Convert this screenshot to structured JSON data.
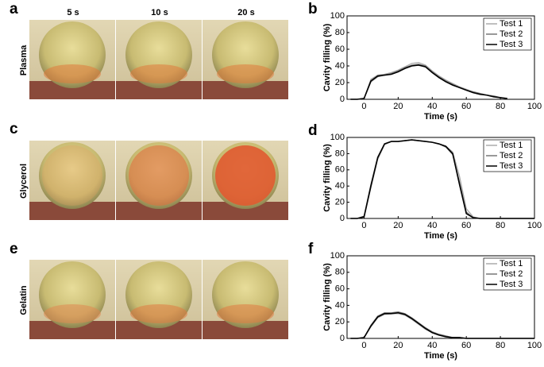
{
  "figure": {
    "columns": [
      "5 s",
      "10 s",
      "20 s"
    ],
    "rows": [
      {
        "panel": "a",
        "label": "Plasma"
      },
      {
        "panel": "c",
        "label": "Glycerol"
      },
      {
        "panel": "e",
        "label": "Gelatin"
      }
    ]
  },
  "chart_data": [
    {
      "type": "line",
      "panel": "b",
      "xlabel": "Time (s)",
      "ylabel": "Cavity filling (%)",
      "xlim": [
        -10,
        100
      ],
      "ylim": [
        0,
        100
      ],
      "xticks": [
        0,
        20,
        40,
        60,
        80,
        100
      ],
      "yticks": [
        0,
        20,
        40,
        60,
        80,
        100
      ],
      "legend": "upper right",
      "x": [
        -8,
        -4,
        0,
        4,
        8,
        12,
        16,
        20,
        24,
        28,
        32,
        36,
        40,
        44,
        48,
        52,
        56,
        60,
        64,
        68,
        72,
        76,
        80,
        84,
        88,
        92,
        96,
        100
      ],
      "series": [
        {
          "name": "Test 1",
          "color": "#aaaaaa",
          "values": [
            0,
            0,
            1,
            24,
            29,
            30,
            32,
            35,
            39,
            43,
            44,
            41,
            34,
            28,
            23,
            19,
            15,
            12,
            9,
            7,
            5,
            4,
            2,
            1,
            null,
            null,
            null,
            null
          ]
        },
        {
          "name": "Test 2",
          "color": "#777777",
          "values": [
            0,
            0,
            1,
            21,
            27,
            29,
            31,
            34,
            38,
            41,
            42,
            40,
            33,
            27,
            22,
            18,
            14,
            11,
            9,
            7,
            5,
            4,
            2,
            1,
            null,
            null,
            null,
            null
          ]
        },
        {
          "name": "Test 3",
          "color": "#000000",
          "values": [
            0,
            0,
            1,
            22,
            28,
            29,
            30,
            33,
            37,
            40,
            41,
            39,
            32,
            26,
            21,
            17,
            14,
            11,
            8,
            6,
            5,
            3,
            2,
            1,
            null,
            null,
            null,
            null
          ]
        }
      ]
    },
    {
      "type": "line",
      "panel": "d",
      "xlabel": "Time (s)",
      "ylabel": "Cavity filling (%)",
      "xlim": [
        -10,
        100
      ],
      "ylim": [
        0,
        100
      ],
      "xticks": [
        0,
        20,
        40,
        60,
        80,
        100
      ],
      "yticks": [
        0,
        20,
        40,
        60,
        80,
        100
      ],
      "legend": "upper right",
      "x": [
        -8,
        -4,
        0,
        4,
        8,
        12,
        16,
        20,
        24,
        28,
        32,
        36,
        40,
        44,
        48,
        52,
        56,
        60,
        64,
        68,
        72,
        76,
        80,
        84,
        88,
        92,
        96,
        100
      ],
      "series": [
        {
          "name": "Test 1",
          "color": "#aaaaaa",
          "values": [
            0,
            0,
            2,
            38,
            73,
            91,
            95,
            95,
            96,
            97,
            96,
            95,
            94,
            92,
            89,
            82,
            52,
            12,
            2,
            0,
            0,
            0,
            0,
            0,
            0,
            0,
            0,
            0
          ]
        },
        {
          "name": "Test 2",
          "color": "#777777",
          "values": [
            0,
            0,
            3,
            42,
            76,
            92,
            95,
            95,
            96,
            97,
            96,
            95,
            94,
            92,
            88,
            79,
            45,
            8,
            1,
            0,
            0,
            0,
            0,
            0,
            0,
            0,
            0,
            0
          ]
        },
        {
          "name": "Test 3",
          "color": "#000000",
          "values": [
            0,
            0,
            2,
            40,
            75,
            92,
            95,
            95,
            96,
            97,
            96,
            95,
            94,
            92,
            89,
            80,
            42,
            6,
            1,
            0,
            0,
            0,
            0,
            0,
            0,
            0,
            0,
            0
          ]
        }
      ]
    },
    {
      "type": "line",
      "panel": "f",
      "xlabel": "Time (s)",
      "ylabel": "Cavity filling (%)",
      "xlim": [
        -10,
        100
      ],
      "ylim": [
        0,
        100
      ],
      "xticks": [
        0,
        20,
        40,
        60,
        80,
        100
      ],
      "yticks": [
        0,
        20,
        40,
        60,
        80,
        100
      ],
      "legend": "upper right",
      "x": [
        -8,
        -4,
        0,
        4,
        8,
        12,
        16,
        20,
        24,
        28,
        32,
        36,
        40,
        44,
        48,
        52,
        56,
        60,
        64,
        68,
        72,
        76,
        80,
        84,
        88,
        92,
        96,
        100
      ],
      "series": [
        {
          "name": "Test 1",
          "color": "#aaaaaa",
          "values": [
            0,
            0,
            1,
            14,
            25,
            29,
            30,
            30,
            28,
            23,
            17,
            11,
            7,
            4,
            2,
            1,
            1,
            0,
            0,
            0,
            0,
            0,
            0,
            0,
            0,
            0,
            0,
            0
          ]
        },
        {
          "name": "Test 2",
          "color": "#777777",
          "values": [
            0,
            0,
            1,
            16,
            27,
            31,
            31,
            32,
            30,
            25,
            19,
            13,
            8,
            5,
            3,
            1,
            1,
            0,
            0,
            0,
            0,
            0,
            0,
            0,
            0,
            0,
            0,
            0
          ]
        },
        {
          "name": "Test 3",
          "color": "#000000",
          "values": [
            0,
            0,
            1,
            15,
            26,
            30,
            30,
            31,
            29,
            24,
            18,
            12,
            7,
            4,
            2,
            1,
            1,
            0,
            0,
            0,
            0,
            0,
            0,
            0,
            0,
            0,
            0,
            0
          ]
        }
      ]
    }
  ]
}
